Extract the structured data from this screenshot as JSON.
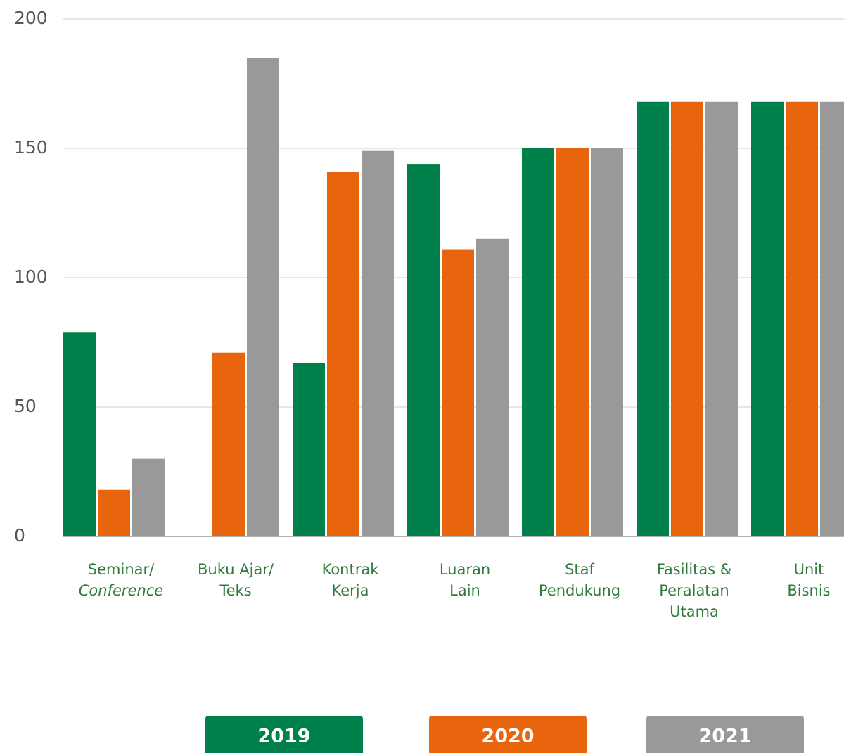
{
  "chart_data": {
    "type": "bar",
    "categories": [
      [
        "Seminar/",
        "Conference"
      ],
      [
        "Buku Ajar/",
        "Teks"
      ],
      [
        "Kontrak",
        "Kerja"
      ],
      [
        "Luaran",
        "Lain"
      ],
      [
        "Staf",
        "Pendukung"
      ],
      [
        "Fasilitas &",
        "Peralatan",
        "Utama"
      ],
      [
        "Unit",
        "Bisnis"
      ]
    ],
    "series": [
      {
        "name": "2019",
        "color": "#00804a",
        "values": [
          79,
          0,
          67,
          144,
          150,
          168,
          168
        ]
      },
      {
        "name": "2020",
        "color": "#e8650e",
        "values": [
          18,
          71,
          141,
          111,
          150,
          168,
          168
        ]
      },
      {
        "name": "2021",
        "color": "#999999",
        "values": [
          30,
          185,
          149,
          115,
          150,
          168,
          168
        ]
      }
    ],
    "ylim": [
      0,
      200
    ],
    "yticks": [
      0,
      50,
      100,
      150,
      200
    ],
    "grid": true
  }
}
